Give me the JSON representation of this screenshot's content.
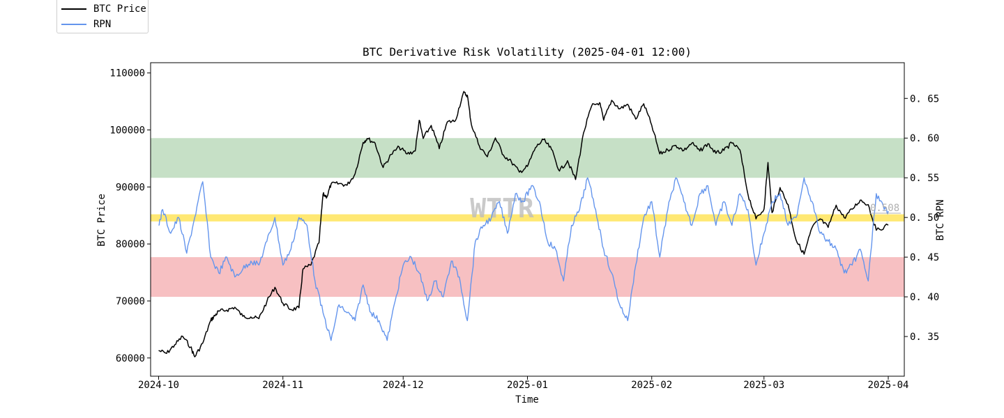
{
  "chart_data": {
    "type": "line",
    "title": "BTC Derivative Risk Volatility (2025-04-01 12:00)",
    "xlabel": "Time",
    "ylabel_left": "BTC Price",
    "ylabel_right": "BTC RPN",
    "x_range": [
      "2024-09-29",
      "2025-04-05"
    ],
    "x_ticks": [
      "2024-10",
      "2024-11",
      "2024-12",
      "2025-01",
      "2025-02",
      "2025-03",
      "2025-04"
    ],
    "y_left_range": [
      56800,
      111800
    ],
    "y_left_ticks": [
      60000,
      70000,
      80000,
      90000,
      100000,
      110000
    ],
    "y_right_range": [
      0.3,
      0.695
    ],
    "y_right_ticks": [
      0.35,
      0.4,
      0.45,
      0.5,
      0.55,
      0.6,
      0.65
    ],
    "grid": false,
    "legend_position": "top-left",
    "watermark": "WTTR",
    "current_value_label": "0.508",
    "bands": [
      {
        "name": "high",
        "axis": "right",
        "from": 0.55,
        "to": 0.6,
        "color": "#c6e0c6"
      },
      {
        "name": "mid",
        "axis": "right",
        "from": 0.495,
        "to": 0.504,
        "color": "#ffe873"
      },
      {
        "name": "low",
        "axis": "right",
        "from": 0.4,
        "to": 0.45,
        "color": "#f7c0c2"
      }
    ],
    "series": [
      {
        "name": "BTC Price",
        "axis": "left",
        "color": "#000000",
        "x": [
          "2024-10-01",
          "2024-10-03",
          "2024-10-05",
          "2024-10-07",
          "2024-10-09",
          "2024-10-10",
          "2024-10-12",
          "2024-10-14",
          "2024-10-15",
          "2024-10-16",
          "2024-10-18",
          "2024-10-20",
          "2024-10-22",
          "2024-10-24",
          "2024-10-26",
          "2024-10-28",
          "2024-10-30",
          "2024-11-01",
          "2024-11-03",
          "2024-11-05",
          "2024-11-06",
          "2024-11-08",
          "2024-11-10",
          "2024-11-11",
          "2024-11-12",
          "2024-11-13",
          "2024-11-15",
          "2024-11-17",
          "2024-11-19",
          "2024-11-21",
          "2024-11-22",
          "2024-11-24",
          "2024-11-26",
          "2024-11-28",
          "2024-11-30",
          "2024-12-02",
          "2024-12-04",
          "2024-12-05",
          "2024-12-06",
          "2024-12-08",
          "2024-12-10",
          "2024-12-12",
          "2024-12-14",
          "2024-12-16",
          "2024-12-17",
          "2024-12-18",
          "2024-12-20",
          "2024-12-22",
          "2024-12-24",
          "2024-12-26",
          "2024-12-28",
          "2024-12-30",
          "2025-01-01",
          "2025-01-03",
          "2025-01-05",
          "2025-01-07",
          "2025-01-09",
          "2025-01-11",
          "2025-01-13",
          "2025-01-15",
          "2025-01-17",
          "2025-01-19",
          "2025-01-20",
          "2025-01-22",
          "2025-01-24",
          "2025-01-26",
          "2025-01-28",
          "2025-01-30",
          "2025-02-01",
          "2025-02-03",
          "2025-02-05",
          "2025-02-07",
          "2025-02-09",
          "2025-02-11",
          "2025-02-13",
          "2025-02-15",
          "2025-02-17",
          "2025-02-19",
          "2025-02-21",
          "2025-02-23",
          "2025-02-25",
          "2025-02-27",
          "2025-03-01",
          "2025-03-02",
          "2025-03-03",
          "2025-03-05",
          "2025-03-07",
          "2025-03-09",
          "2025-03-11",
          "2025-03-13",
          "2025-03-15",
          "2025-03-17",
          "2025-03-19",
          "2025-03-21",
          "2025-03-23",
          "2025-03-25",
          "2025-03-27",
          "2025-03-29",
          "2025-04-01"
        ],
        "values": [
          61300,
          60800,
          62300,
          63800,
          61900,
          60200,
          62600,
          66600,
          67400,
          68200,
          68400,
          68900,
          67300,
          67200,
          66900,
          69900,
          72400,
          69600,
          68500,
          68800,
          75600,
          76300,
          80200,
          88700,
          88300,
          90500,
          90600,
          90300,
          92300,
          97800,
          98500,
          97700,
          93400,
          95700,
          97000,
          95800,
          96300,
          101700,
          98500,
          100800,
          96700,
          101400,
          101600,
          106500,
          106100,
          101000,
          97200,
          95300,
          98600,
          95600,
          94400,
          92600,
          93600,
          96900,
          98300,
          96600,
          92800,
          94600,
          91300,
          99500,
          104200,
          104800,
          101700,
          105200,
          103700,
          104500,
          101900,
          104600,
          100800,
          95800,
          96500,
          97300,
          96400,
          97700,
          96300,
          97600,
          95900,
          96400,
          97700,
          96500,
          88700,
          84400,
          86100,
          94300,
          85500,
          89900,
          86900,
          80700,
          78200,
          82900,
          84400,
          82900,
          86800,
          84600,
          86100,
          87700,
          86900,
          82400,
          83300
        ]
      },
      {
        "name": "RPN",
        "axis": "right",
        "color": "#6495ed",
        "x": [
          "2024-10-01",
          "2024-10-02",
          "2024-10-04",
          "2024-10-06",
          "2024-10-08",
          "2024-10-10",
          "2024-10-12",
          "2024-10-14",
          "2024-10-16",
          "2024-10-18",
          "2024-10-20",
          "2024-10-22",
          "2024-10-24",
          "2024-10-26",
          "2024-10-28",
          "2024-10-30",
          "2024-11-01",
          "2024-11-03",
          "2024-11-05",
          "2024-11-07",
          "2024-11-09",
          "2024-11-11",
          "2024-11-13",
          "2024-11-15",
          "2024-11-17",
          "2024-11-19",
          "2024-11-21",
          "2024-11-23",
          "2024-11-25",
          "2024-11-27",
          "2024-11-29",
          "2024-12-01",
          "2024-12-03",
          "2024-12-05",
          "2024-12-07",
          "2024-12-09",
          "2024-12-11",
          "2024-12-13",
          "2024-12-15",
          "2024-12-17",
          "2024-12-19",
          "2024-12-21",
          "2024-12-23",
          "2024-12-25",
          "2024-12-27",
          "2024-12-29",
          "2024-12-31",
          "2025-01-02",
          "2025-01-04",
          "2025-01-06",
          "2025-01-08",
          "2025-01-10",
          "2025-01-12",
          "2025-01-14",
          "2025-01-16",
          "2025-01-18",
          "2025-01-20",
          "2025-01-22",
          "2025-01-24",
          "2025-01-26",
          "2025-01-28",
          "2025-01-30",
          "2025-02-01",
          "2025-02-03",
          "2025-02-05",
          "2025-02-07",
          "2025-02-09",
          "2025-02-11",
          "2025-02-13",
          "2025-02-15",
          "2025-02-17",
          "2025-02-19",
          "2025-02-21",
          "2025-02-23",
          "2025-02-25",
          "2025-02-27",
          "2025-03-01",
          "2025-03-03",
          "2025-03-05",
          "2025-03-07",
          "2025-03-09",
          "2025-03-11",
          "2025-03-13",
          "2025-03-15",
          "2025-03-17",
          "2025-03-19",
          "2025-03-21",
          "2025-03-23",
          "2025-03-25",
          "2025-03-27",
          "2025-03-29",
          "2025-03-31",
          "2025-04-01"
        ],
        "values": [
          0.49,
          0.51,
          0.48,
          0.5,
          0.455,
          0.5,
          0.545,
          0.45,
          0.43,
          0.45,
          0.425,
          0.435,
          0.445,
          0.44,
          0.47,
          0.5,
          0.44,
          0.46,
          0.5,
          0.49,
          0.42,
          0.38,
          0.345,
          0.39,
          0.38,
          0.37,
          0.415,
          0.38,
          0.37,
          0.345,
          0.395,
          0.44,
          0.45,
          0.43,
          0.395,
          0.42,
          0.4,
          0.445,
          0.425,
          0.37,
          0.47,
          0.49,
          0.5,
          0.52,
          0.48,
          0.53,
          0.52,
          0.54,
          0.52,
          0.47,
          0.46,
          0.42,
          0.49,
          0.51,
          0.55,
          0.51,
          0.46,
          0.43,
          0.39,
          0.37,
          0.44,
          0.5,
          0.52,
          0.45,
          0.51,
          0.55,
          0.52,
          0.49,
          0.53,
          0.54,
          0.49,
          0.52,
          0.49,
          0.53,
          0.51,
          0.44,
          0.48,
          0.52,
          0.53,
          0.49,
          0.5,
          0.55,
          0.52,
          0.48,
          0.47,
          0.46,
          0.43,
          0.44,
          0.46,
          0.42,
          0.53,
          0.51,
          0.508
        ]
      }
    ]
  }
}
